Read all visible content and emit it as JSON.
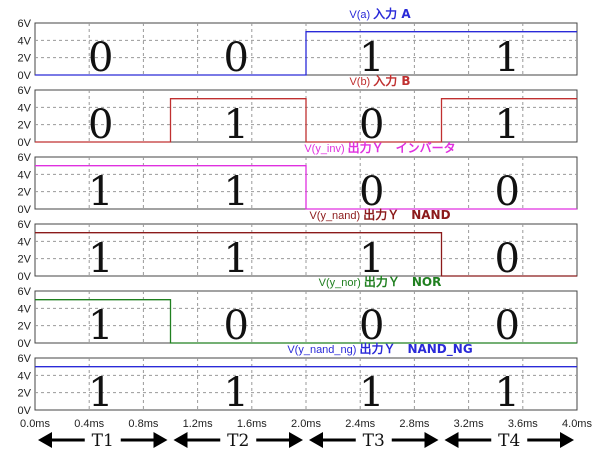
{
  "chart_data": {
    "type": "line",
    "xunit": "ms",
    "xlim": [
      0,
      4.0
    ],
    "ylim": [
      0,
      6
    ],
    "x_ticks": [
      "0.0ms",
      "0.4ms",
      "0.8ms",
      "1.2ms",
      "1.6ms",
      "2.0ms",
      "2.4ms",
      "2.8ms",
      "3.2ms",
      "3.6ms",
      "4.0ms"
    ],
    "y_ticks": [
      "0V",
      "2V",
      "4V",
      "6V"
    ],
    "grid": true,
    "series": [
      {
        "name": "V(a)",
        "label": "入力 A",
        "color": "#2a2ad8",
        "x": [
          0,
          2.0,
          2.0,
          4.0
        ],
        "y": [
          0,
          0,
          5,
          5
        ],
        "digits": [
          "0",
          "0",
          "1",
          "1"
        ]
      },
      {
        "name": "V(b)",
        "label": "入力 B",
        "color": "#c03030",
        "x": [
          0,
          1.0,
          1.0,
          2.0,
          2.0,
          3.0,
          3.0,
          4.0
        ],
        "y": [
          0,
          0,
          5,
          5,
          0,
          0,
          5,
          5
        ],
        "digits": [
          "0",
          "1",
          "0",
          "1"
        ]
      },
      {
        "name": "V(y_inv)",
        "label": "出力Ｙ　インバータ",
        "color": "#e030e0",
        "x": [
          0,
          2.0,
          2.0,
          4.0
        ],
        "y": [
          5,
          5,
          0,
          0
        ],
        "digits": [
          "1",
          "1",
          "0",
          "0"
        ]
      },
      {
        "name": "V(y_nand)",
        "label": "出力Ｙ　NAND",
        "color": "#8b1a1a",
        "x": [
          0,
          3.0,
          3.0,
          4.0
        ],
        "y": [
          5,
          5,
          0,
          0
        ],
        "digits": [
          "1",
          "1",
          "1",
          "0"
        ]
      },
      {
        "name": "V(y_nor)",
        "label": "出力Ｙ　NOR",
        "color": "#208020",
        "x": [
          0,
          1.0,
          1.0,
          4.0
        ],
        "y": [
          5,
          5,
          0,
          0
        ],
        "digits": [
          "1",
          "0",
          "0",
          "0"
        ]
      },
      {
        "name": "V(y_nand_ng)",
        "label": "出力Ｙ　NAND_NG",
        "color": "#2a2ad8",
        "x": [
          0,
          4.0
        ],
        "y": [
          5,
          5
        ],
        "digits": [
          "1",
          "1",
          "1",
          "1"
        ]
      }
    ],
    "periods": [
      "T1",
      "T2",
      "T3",
      "T4"
    ]
  }
}
